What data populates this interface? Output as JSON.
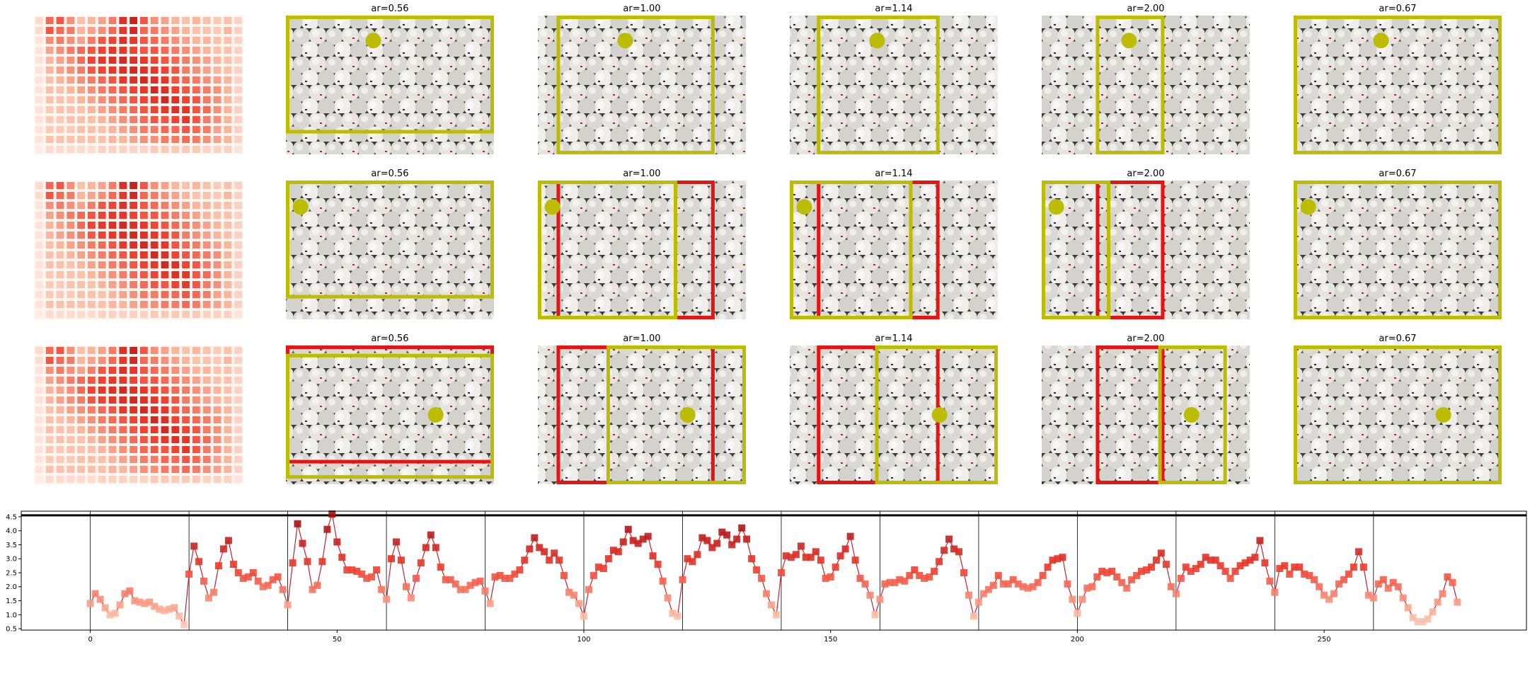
{
  "panels": {
    "rows": 3,
    "heatmap_intensity": [
      [
        0.15,
        0.55,
        0.6,
        0.45,
        0.3,
        0.35,
        0.4,
        0.5,
        0.75,
        0.85,
        0.6,
        0.45,
        0.4,
        0.35,
        0.3,
        0.35,
        0.3,
        0.25,
        0.3,
        0.2
      ],
      [
        0.15,
        0.6,
        0.55,
        0.5,
        0.35,
        0.4,
        0.45,
        0.55,
        0.7,
        0.8,
        0.55,
        0.5,
        0.45,
        0.4,
        0.35,
        0.3,
        0.3,
        0.25,
        0.35,
        0.2
      ],
      [
        0.1,
        0.45,
        0.5,
        0.45,
        0.4,
        0.5,
        0.6,
        0.65,
        0.75,
        0.7,
        0.6,
        0.55,
        0.5,
        0.45,
        0.4,
        0.35,
        0.35,
        0.3,
        0.3,
        0.2
      ],
      [
        0.1,
        0.4,
        0.45,
        0.5,
        0.55,
        0.6,
        0.65,
        0.7,
        0.7,
        0.65,
        0.6,
        0.6,
        0.55,
        0.5,
        0.45,
        0.4,
        0.35,
        0.3,
        0.3,
        0.2
      ],
      [
        0.1,
        0.35,
        0.4,
        0.45,
        0.55,
        0.65,
        0.7,
        0.75,
        0.8,
        0.75,
        0.7,
        0.65,
        0.6,
        0.55,
        0.5,
        0.45,
        0.4,
        0.35,
        0.3,
        0.2
      ],
      [
        0.1,
        0.35,
        0.4,
        0.45,
        0.5,
        0.6,
        0.65,
        0.7,
        0.75,
        0.8,
        0.75,
        0.7,
        0.65,
        0.6,
        0.5,
        0.45,
        0.4,
        0.35,
        0.3,
        0.2
      ],
      [
        0.1,
        0.3,
        0.35,
        0.4,
        0.45,
        0.5,
        0.55,
        0.6,
        0.7,
        0.75,
        0.8,
        0.75,
        0.7,
        0.6,
        0.55,
        0.5,
        0.45,
        0.4,
        0.35,
        0.2
      ],
      [
        0.1,
        0.3,
        0.3,
        0.35,
        0.4,
        0.45,
        0.5,
        0.55,
        0.6,
        0.65,
        0.7,
        0.8,
        0.75,
        0.65,
        0.6,
        0.55,
        0.5,
        0.45,
        0.35,
        0.2
      ],
      [
        0.1,
        0.3,
        0.3,
        0.3,
        0.35,
        0.4,
        0.45,
        0.5,
        0.55,
        0.6,
        0.65,
        0.7,
        0.8,
        0.75,
        0.65,
        0.6,
        0.5,
        0.45,
        0.35,
        0.2
      ],
      [
        0.1,
        0.25,
        0.3,
        0.3,
        0.3,
        0.35,
        0.4,
        0.45,
        0.5,
        0.55,
        0.6,
        0.65,
        0.7,
        0.75,
        0.7,
        0.6,
        0.55,
        0.45,
        0.35,
        0.2
      ],
      [
        0.1,
        0.25,
        0.25,
        0.3,
        0.3,
        0.3,
        0.35,
        0.4,
        0.45,
        0.5,
        0.55,
        0.6,
        0.6,
        0.65,
        0.7,
        0.6,
        0.5,
        0.45,
        0.35,
        0.2
      ],
      [
        0.1,
        0.25,
        0.25,
        0.25,
        0.3,
        0.3,
        0.3,
        0.35,
        0.4,
        0.45,
        0.5,
        0.5,
        0.55,
        0.55,
        0.6,
        0.55,
        0.5,
        0.4,
        0.35,
        0.2
      ],
      [
        0.1,
        0.3,
        0.3,
        0.3,
        0.3,
        0.3,
        0.3,
        0.35,
        0.35,
        0.4,
        0.45,
        0.45,
        0.5,
        0.5,
        0.55,
        0.5,
        0.45,
        0.4,
        0.35,
        0.2
      ],
      [
        0.05,
        0.15,
        0.15,
        0.15,
        0.15,
        0.15,
        0.2,
        0.2,
        0.2,
        0.2,
        0.2,
        0.25,
        0.25,
        0.25,
        0.25,
        0.25,
        0.2,
        0.2,
        0.2,
        0.1
      ]
    ],
    "columns": [
      {
        "title": "ar=0.56",
        "frames": [
          [
            {
              "x": 0,
              "y": 0,
              "w": 1,
              "h": 0.85,
              "color": "#bdbd00"
            }
          ],
          [
            {
              "x": 0,
              "y": 0,
              "w": 1,
              "h": 0.85,
              "color": "#bdbd00"
            }
          ],
          [
            {
              "x": 0,
              "y": 0,
              "w": 1,
              "h": 0.85,
              "color": "#e81414"
            },
            {
              "x": 0,
              "y": 0.06,
              "w": 1,
              "h": 0.9,
              "color": "#bdbd00"
            }
          ]
        ],
        "dots": [
          [
            0.42,
            0.18
          ],
          [
            0.07,
            0.19
          ],
          [
            0.72,
            0.5
          ]
        ]
      },
      {
        "title": "ar=1.00",
        "frames": [
          [
            {
              "x": 0.09,
              "y": 0,
              "w": 0.76,
              "h": 1,
              "color": "#bdbd00"
            }
          ],
          [
            {
              "x": 0.09,
              "y": 0,
              "w": 0.76,
              "h": 1,
              "color": "#e81414"
            },
            {
              "x": 0,
              "y": 0,
              "w": 0.67,
              "h": 1,
              "color": "#bdbd00"
            }
          ],
          [
            {
              "x": 0.09,
              "y": 0,
              "w": 0.76,
              "h": 1,
              "color": "#e81414"
            },
            {
              "x": 0.33,
              "y": 0,
              "w": 0.67,
              "h": 1,
              "color": "#bdbd00"
            }
          ]
        ],
        "dots": [
          [
            0.42,
            0.18
          ],
          [
            0.07,
            0.19
          ],
          [
            0.72,
            0.5
          ]
        ]
      },
      {
        "title": "ar=1.14",
        "frames": [
          [
            {
              "x": 0.13,
              "y": 0,
              "w": 0.59,
              "h": 1,
              "color": "#bdbd00"
            }
          ],
          [
            {
              "x": 0.13,
              "y": 0,
              "w": 0.59,
              "h": 1,
              "color": "#e81414"
            },
            {
              "x": 0,
              "y": 0,
              "w": 0.59,
              "h": 1,
              "color": "#bdbd00"
            }
          ],
          [
            {
              "x": 0.13,
              "y": 0,
              "w": 0.59,
              "h": 1,
              "color": "#e81414"
            },
            {
              "x": 0.41,
              "y": 0,
              "w": 0.59,
              "h": 1,
              "color": "#bdbd00"
            }
          ]
        ],
        "dots": [
          [
            0.42,
            0.18
          ],
          [
            0.07,
            0.19
          ],
          [
            0.72,
            0.5
          ]
        ]
      },
      {
        "title": "ar=2.00",
        "frames": [
          [
            {
              "x": 0.26,
              "y": 0,
              "w": 0.33,
              "h": 1,
              "color": "#bdbd00"
            }
          ],
          [
            {
              "x": 0.26,
              "y": 0,
              "w": 0.33,
              "h": 1,
              "color": "#e81414"
            },
            {
              "x": 0,
              "y": 0,
              "w": 0.33,
              "h": 1,
              "color": "#bdbd00"
            }
          ],
          [
            {
              "x": 0.26,
              "y": 0,
              "w": 0.33,
              "h": 1,
              "color": "#e81414"
            },
            {
              "x": 0.56,
              "y": 0,
              "w": 0.33,
              "h": 1,
              "color": "#bdbd00"
            }
          ]
        ],
        "dots": [
          [
            0.42,
            0.18
          ],
          [
            0.07,
            0.19
          ],
          [
            0.72,
            0.5
          ]
        ]
      },
      {
        "title": "ar=0.67",
        "frames": [
          [
            {
              "x": 0,
              "y": 0,
              "w": 1,
              "h": 1,
              "color": "#bdbd00"
            }
          ],
          [
            {
              "x": 0,
              "y": 0,
              "w": 1,
              "h": 1,
              "color": "#bdbd00"
            }
          ],
          [
            {
              "x": 0,
              "y": 0,
              "w": 1,
              "h": 1,
              "color": "#bdbd00"
            }
          ]
        ],
        "dots": [
          [
            0.42,
            0.18
          ],
          [
            0.07,
            0.19
          ],
          [
            0.72,
            0.5
          ]
        ]
      }
    ],
    "marker_color": "#bdbd00"
  },
  "chart_data": {
    "type": "line",
    "xlim": [
      -14,
      291
    ],
    "ylim": [
      0.45,
      4.7
    ],
    "xticks": [
      0,
      50,
      100,
      150,
      200,
      250
    ],
    "yticks": [
      0.5,
      1.0,
      1.5,
      2.0,
      2.5,
      3.0,
      3.5,
      4.0,
      4.5
    ],
    "hline": 4.55,
    "vlines": [
      0,
      20,
      40,
      60,
      80,
      100,
      120,
      140,
      160,
      180,
      200,
      220,
      240,
      260
    ],
    "y": [
      1.4,
      1.75,
      1.55,
      1.25,
      1.0,
      1.05,
      1.35,
      1.75,
      1.85,
      1.5,
      1.45,
      1.4,
      1.45,
      1.3,
      1.2,
      1.15,
      1.2,
      1.25,
      0.95,
      0.65,
      2.45,
      3.45,
      2.9,
      2.2,
      1.6,
      1.8,
      2.75,
      3.35,
      3.65,
      2.8,
      2.5,
      2.3,
      2.35,
      2.5,
      2.2,
      2.0,
      2.05,
      2.25,
      2.35,
      1.9,
      1.35,
      2.85,
      4.25,
      3.55,
      2.9,
      1.9,
      2.05,
      2.9,
      4.05,
      4.6,
      3.6,
      3.05,
      2.6,
      2.6,
      2.55,
      2.45,
      2.3,
      2.35,
      2.6,
      1.9,
      1.55,
      3.0,
      3.6,
      2.95,
      2.0,
      1.6,
      2.3,
      2.85,
      3.4,
      3.85,
      3.4,
      2.7,
      2.25,
      2.25,
      2.1,
      1.9,
      1.9,
      2.05,
      2.15,
      2.2,
      1.85,
      1.4,
      2.35,
      2.4,
      2.3,
      2.3,
      2.45,
      2.6,
      2.95,
      3.35,
      3.75,
      3.4,
      3.25,
      2.95,
      3.2,
      2.95,
      2.4,
      1.8,
      1.7,
      1.4,
      0.95,
      1.9,
      2.4,
      2.7,
      2.65,
      3.0,
      3.3,
      3.25,
      3.6,
      4.05,
      3.65,
      3.55,
      3.7,
      3.8,
      3.1,
      2.8,
      2.2,
      1.6,
      1.05,
      0.95,
      2.25,
      3.0,
      2.9,
      3.15,
      3.75,
      3.65,
      3.4,
      3.55,
      3.95,
      3.85,
      3.5,
      3.7,
      4.1,
      3.7,
      3.0,
      2.6,
      2.3,
      1.75,
      1.35,
      1.0,
      2.5,
      3.1,
      3.05,
      3.15,
      3.45,
      3.05,
      3.05,
      3.25,
      2.95,
      2.3,
      2.35,
      2.7,
      3.1,
      3.35,
      3.8,
      2.95,
      2.3,
      2.1,
      1.7,
      1.0,
      1.55,
      2.1,
      2.15,
      2.15,
      2.25,
      2.2,
      2.4,
      2.6,
      2.4,
      2.3,
      2.35,
      2.55,
      2.9,
      3.3,
      3.7,
      3.35,
      3.25,
      2.5,
      1.7,
      0.95,
      1.45,
      1.75,
      1.9,
      2.05,
      2.4,
      2.1,
      2.1,
      2.25,
      2.1,
      2.0,
      1.95,
      2.0,
      2.15,
      2.4,
      2.7,
      2.95,
      3.0,
      3.05,
      2.1,
      1.55,
      1.05,
      1.55,
      1.95,
      2.0,
      2.35,
      2.55,
      2.5,
      2.55,
      2.35,
      2.15,
      1.95,
      2.25,
      2.4,
      2.55,
      2.6,
      2.7,
      2.95,
      3.2,
      2.8,
      2.0,
      1.75,
      2.3,
      2.7,
      2.55,
      2.65,
      2.8,
      3.05,
      2.95,
      2.95,
      2.75,
      2.55,
      2.3,
      2.55,
      2.75,
      2.85,
      2.95,
      3.05,
      3.65,
      2.85,
      2.2,
      1.8,
      2.65,
      2.75,
      2.45,
      2.7,
      2.7,
      2.45,
      2.4,
      2.25,
      2.0,
      1.7,
      1.55,
      1.75,
      2.1,
      2.25,
      2.45,
      2.7,
      3.25,
      2.7,
      1.7,
      1.6,
      2.1,
      2.25,
      1.95,
      2.15,
      2.0,
      1.6,
      1.25,
      0.9,
      0.75,
      0.75,
      0.85,
      1.1,
      1.45,
      1.75,
      2.35,
      2.15,
      1.45
    ]
  }
}
